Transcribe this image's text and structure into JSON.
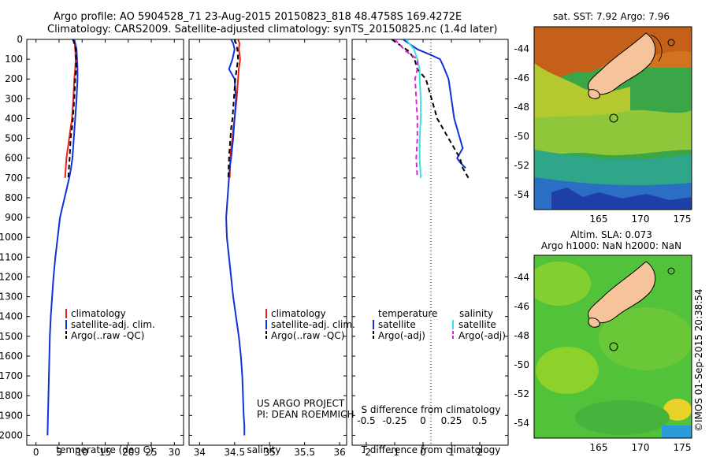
{
  "header": {
    "line1": "Argo profile: AO 5904528_71 23-Aug-2015 20150823_818 48.4758S 169.4272E",
    "line2": "Climatology: CARS2009. Satellite-adjusted climatology: synTS_20150825.nc (1.4d later)"
  },
  "credit": "US ARGO PROJECT",
  "pi": "PI: DEAN ROEMMICH",
  "watermark": "©IMOS 01-Sep-2015 20:38:54",
  "colors": {
    "climatology": "#e8201a",
    "satellite": "#1230d8",
    "argo": "#000000",
    "salinity_satellite": "#3fe0e0",
    "salinity_argo": "#e020e0"
  },
  "chart_data": [
    {
      "type": "line",
      "id": "temperature",
      "xlabel": "temperature (deg C)",
      "ylabel": "",
      "xlim": [
        -2,
        32
      ],
      "ylim": [
        2050,
        0
      ],
      "x_ticks": [
        "0",
        "5",
        "10",
        "15",
        "20",
        "25",
        "30"
      ],
      "y_ticks": [
        "0",
        "100",
        "200",
        "300",
        "400",
        "500",
        "600",
        "700",
        "800",
        "900",
        "1000",
        "1100",
        "1200",
        "1300",
        "1400",
        "1500",
        "1600",
        "1700",
        "1800",
        "1900",
        "2000"
      ],
      "legend": [
        "climatology",
        "satellite-adj. clim.",
        "Argo(..raw -QC)"
      ],
      "series": [
        {
          "name": "climatology",
          "style": "solid",
          "color": "climatology",
          "x": [
            8.2,
            8.4,
            8.5,
            8.6,
            8.5,
            8.3,
            8.1,
            7.8,
            7.5,
            7.2,
            6.9,
            6.6,
            6.3
          ],
          "y": [
            0,
            20,
            50,
            100,
            150,
            200,
            300,
            400,
            450,
            500,
            550,
            600,
            700
          ]
        },
        {
          "name": "satellite-adj. clim.",
          "style": "solid",
          "color": "satellite",
          "x": [
            8.3,
            8.5,
            8.8,
            8.9,
            9.0,
            9.0,
            8.8,
            8.5,
            8.2,
            7.9,
            7.6,
            7.2,
            6.2,
            5.2,
            4.7,
            4.2,
            3.8,
            3.5,
            3.2,
            3.0,
            2.9,
            2.8,
            2.7,
            2.6,
            2.55,
            2.5
          ],
          "y": [
            0,
            20,
            50,
            100,
            150,
            200,
            300,
            400,
            500,
            600,
            650,
            700,
            800,
            900,
            1000,
            1100,
            1200,
            1300,
            1400,
            1500,
            1600,
            1700,
            1800,
            1900,
            1950,
            2000
          ]
        },
        {
          "name": "Argo(..raw -QC)",
          "style": "dashed",
          "color": "argo",
          "x": [
            8.0,
            8.3,
            8.6,
            8.7,
            8.7,
            8.5,
            8.3,
            8.0,
            7.8,
            7.5,
            7.3,
            7.0
          ],
          "y": [
            0,
            20,
            50,
            100,
            150,
            200,
            300,
            400,
            450,
            500,
            600,
            700
          ]
        }
      ]
    },
    {
      "type": "line",
      "id": "salinity",
      "xlabel": "salinity",
      "xlim": [
        33.85,
        36.1
      ],
      "ylim": [
        2050,
        0
      ],
      "x_ticks": [
        "34",
        "34.5",
        "35",
        "35.5",
        "36"
      ],
      "legend": [
        "climatology",
        "satellite-adj. clim.",
        "Argo(..raw -QC)"
      ],
      "series": [
        {
          "name": "climatology",
          "style": "solid",
          "color": "climatology",
          "x": [
            34.55,
            34.57,
            34.56,
            34.58,
            34.56,
            34.55,
            34.53,
            34.5,
            34.48,
            34.47,
            34.45,
            34.44,
            34.43
          ],
          "y": [
            0,
            20,
            50,
            100,
            150,
            200,
            300,
            400,
            450,
            500,
            550,
            600,
            700
          ]
        },
        {
          "name": "satellite-adj. clim.",
          "style": "solid",
          "color": "satellite",
          "x": [
            34.45,
            34.48,
            34.5,
            34.47,
            34.42,
            34.5,
            34.52,
            34.5,
            34.48,
            34.45,
            34.43,
            34.42,
            34.4,
            34.38,
            34.39,
            34.42,
            34.45,
            34.48,
            34.52,
            34.56,
            34.59,
            34.61,
            34.62,
            34.63,
            34.64,
            34.64
          ],
          "y": [
            0,
            20,
            50,
            100,
            150,
            200,
            300,
            400,
            500,
            600,
            650,
            700,
            800,
            900,
            1000,
            1100,
            1200,
            1300,
            1400,
            1500,
            1600,
            1700,
            1800,
            1900,
            1950,
            2000
          ]
        },
        {
          "name": "Argo(..raw -QC)",
          "style": "dashed",
          "color": "argo",
          "x": [
            34.5,
            34.52,
            34.54,
            34.55,
            34.53,
            34.51,
            34.49,
            34.47,
            34.45,
            34.44,
            34.42,
            34.41
          ],
          "y": [
            0,
            20,
            50,
            100,
            150,
            200,
            300,
            400,
            450,
            500,
            600,
            700
          ]
        }
      ]
    },
    {
      "type": "line",
      "id": "differences",
      "xlabel": "T difference from climatology",
      "xlabel_top": "S difference from climatology",
      "xlim": [
        -2.5,
        3
      ],
      "ylim": [
        2050,
        0
      ],
      "x_ticks": [
        "-2",
        "-1",
        "0",
        "1",
        "2"
      ],
      "s_ticks": [
        "-0.5",
        "-0.25",
        "0",
        "0.25",
        "0.5"
      ],
      "legend_headers": [
        "temperature",
        "salinity"
      ],
      "legend": [
        "satellite",
        "Argo(-adj)",
        "satellite",
        "Argo(-adj)"
      ],
      "series": [
        {
          "name": "temperature satellite",
          "style": "solid",
          "color": "satellite",
          "x": [
            -0.7,
            -0.5,
            -0.2,
            0.3,
            0.6,
            0.7,
            0.9,
            1.0,
            1.1,
            1.2,
            1.3,
            1.4,
            1.2,
            1.3,
            1.5
          ],
          "y": [
            0,
            20,
            50,
            80,
            100,
            130,
            200,
            300,
            400,
            450,
            500,
            550,
            600,
            620,
            650
          ]
        },
        {
          "name": "temperature Argo(-adj)",
          "style": "dashed",
          "color": "argo",
          "x": [
            -1.1,
            -0.8,
            -0.5,
            -0.3,
            -0.2,
            0.1,
            0.3,
            0.5,
            0.7,
            0.9,
            1.1,
            1.3,
            1.4,
            1.6
          ],
          "y": [
            0,
            30,
            60,
            100,
            150,
            200,
            300,
            400,
            450,
            500,
            550,
            600,
            650,
            700
          ]
        },
        {
          "name": "salinity satellite",
          "style": "solid",
          "color": "salinity_satellite",
          "x": [
            -0.15,
            -0.08,
            -0.05,
            -0.03,
            -0.03,
            -0.02,
            -0.02,
            -0.03,
            -0.03,
            -0.02
          ],
          "y": [
            0,
            50,
            100,
            150,
            200,
            300,
            400,
            500,
            600,
            700
          ]
        },
        {
          "name": "salinity Argo(-adj)",
          "style": "dashed",
          "color": "salinity_argo",
          "x": [
            -0.25,
            -0.2,
            -0.15,
            -0.05,
            -0.05,
            -0.07,
            -0.06,
            -0.05,
            -0.05,
            -0.06,
            -0.05
          ],
          "y": [
            0,
            30,
            60,
            100,
            150,
            200,
            300,
            400,
            500,
            600,
            700
          ]
        }
      ]
    }
  ],
  "maps": [
    {
      "id": "sst",
      "title": "sat. SST: 7.92 Argo: 7.96",
      "subtitle": "",
      "y_ticks": [
        "-44",
        "-46",
        "-48",
        "-50",
        "-52",
        "-54"
      ],
      "x_ticks": [
        "165",
        "170",
        "175"
      ]
    },
    {
      "id": "sla",
      "title": "Altim. SLA: 0.073",
      "subtitle": "Argo h1000: NaN h2000: NaN",
      "y_ticks": [
        "-44",
        "-46",
        "-48",
        "-50",
        "-52",
        "-54"
      ],
      "x_ticks": [
        "165",
        "170",
        "175"
      ]
    }
  ]
}
